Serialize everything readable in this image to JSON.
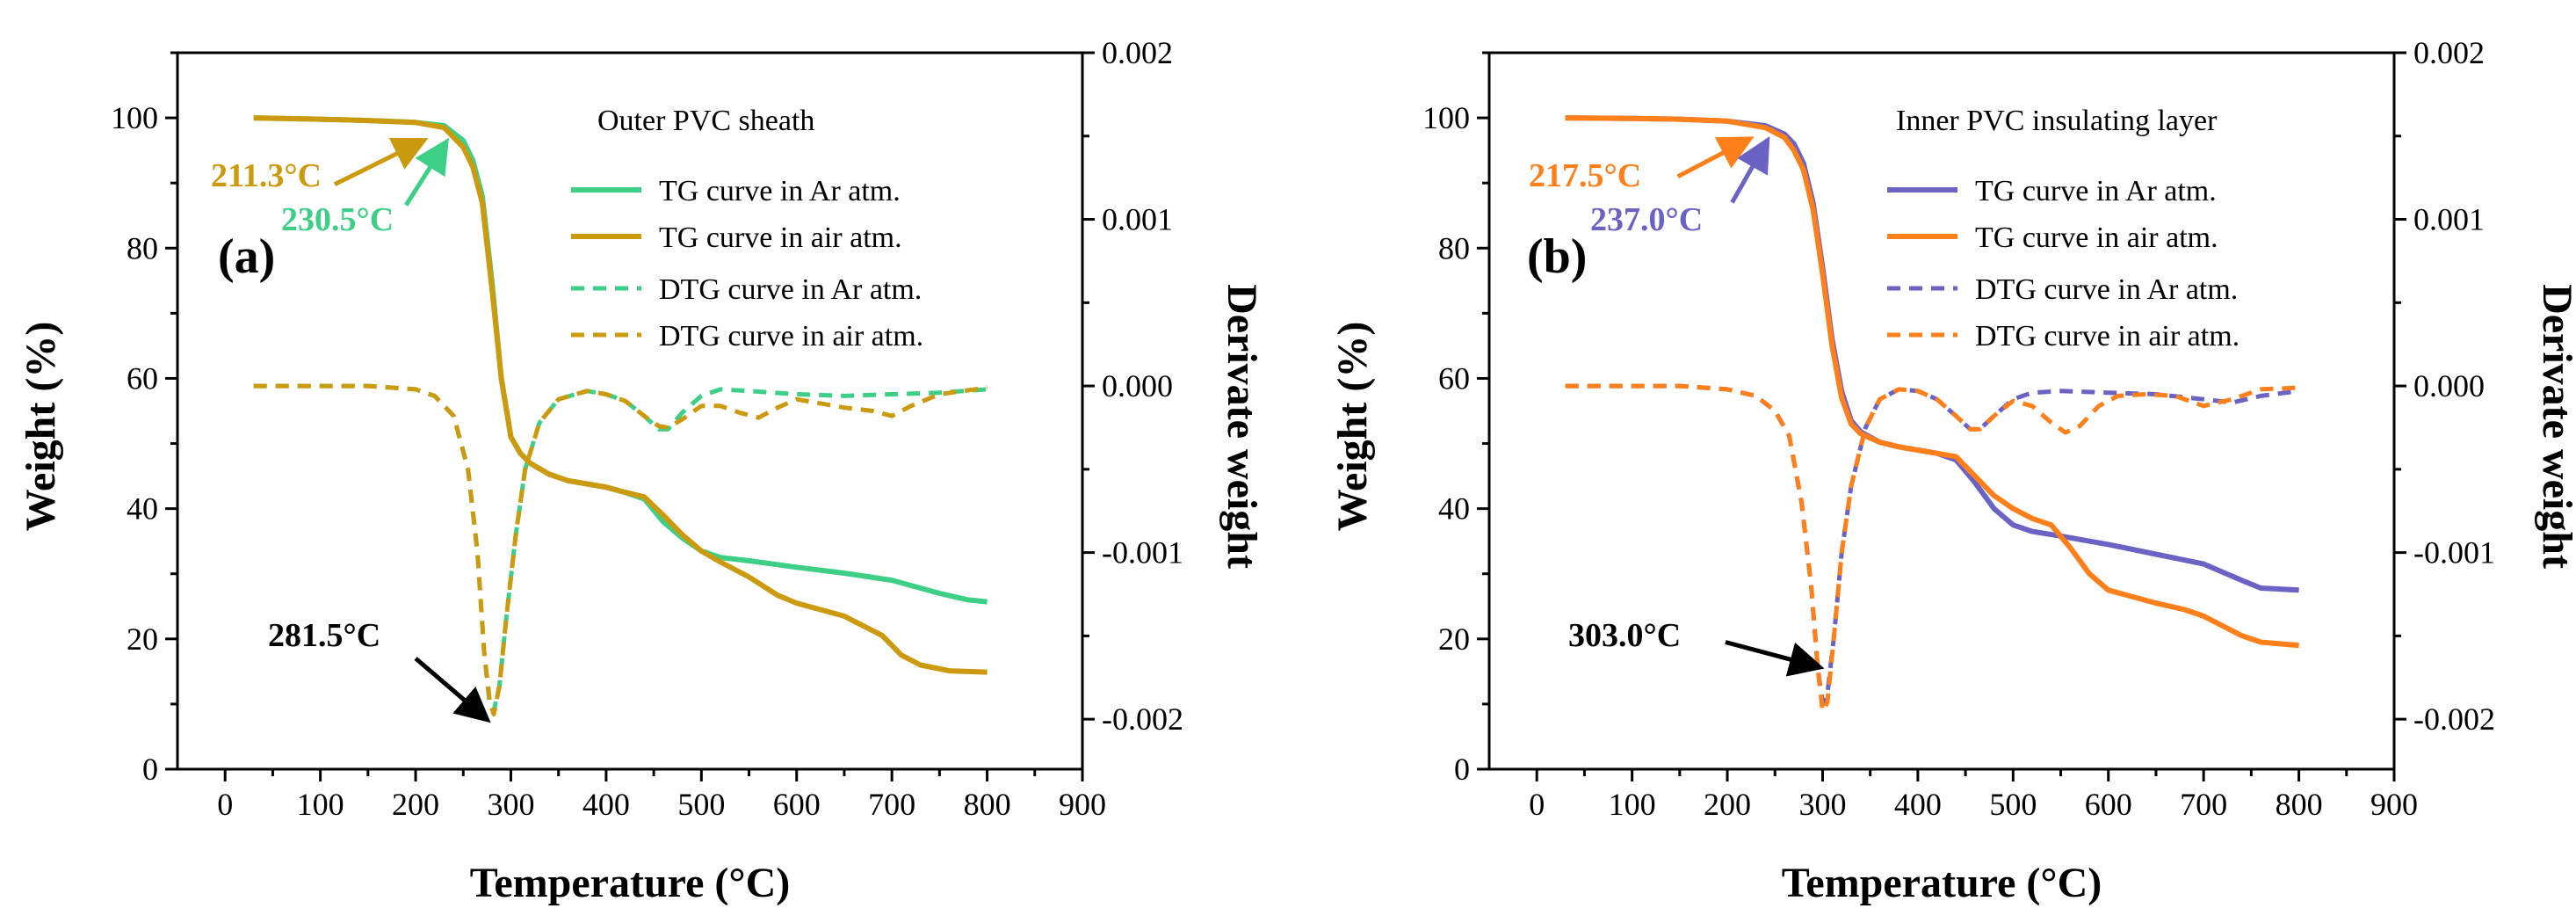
{
  "colors": {
    "ar_a": "#3ecf86",
    "air_a": "#cc9a0f",
    "ar_b": "#6b63c4",
    "air_b": "#ff7f1a",
    "axis": "#000000",
    "black_arrow": "#000000"
  },
  "chart_data": [
    {
      "type": "line",
      "panel_label": "(a)",
      "title": "Outer PVC sheath",
      "xlabel": "Temperature (°C)",
      "ylabel": "Weight (%)",
      "y2label": "Derivate weight",
      "xlim": [
        -50,
        900
      ],
      "ylim": [
        0,
        110
      ],
      "y2lim": [
        -0.0023,
        0.002
      ],
      "x_ticks": [
        0,
        100,
        200,
        300,
        400,
        500,
        600,
        700,
        800,
        900
      ],
      "y_ticks": [
        0,
        20,
        40,
        60,
        80,
        100
      ],
      "y2_ticks": [
        -0.002,
        -0.001,
        0.0,
        0.001,
        0.002
      ],
      "x_tick_labels": [
        "0",
        "100",
        "200",
        "300",
        "400",
        "500",
        "600",
        "700",
        "800",
        "900"
      ],
      "y_tick_labels": [
        "0",
        "20",
        "40",
        "60",
        "80",
        "100"
      ],
      "y2_tick_labels": [
        "-0.002",
        "-0.001",
        "0.000",
        "0.001",
        "0.002"
      ],
      "series": [
        {
          "name": "TG curve in Ar atm.",
          "axis": "left",
          "dash": false,
          "color": "#3ecf86",
          "x": [
            30,
            100,
            150,
            200,
            230,
            250,
            260,
            270,
            280,
            290,
            300,
            310,
            320,
            340,
            360,
            380,
            400,
            420,
            440,
            460,
            480,
            500,
            520,
            550,
            600,
            650,
            700,
            750,
            780,
            800
          ],
          "y": [
            100,
            99.8,
            99.6,
            99.3,
            98.8,
            96.5,
            93.5,
            88,
            75,
            60,
            51,
            48.5,
            47,
            45.3,
            44.3,
            43.8,
            43.3,
            42.5,
            41.5,
            38,
            35.5,
            33.5,
            32.5,
            32,
            31,
            30.1,
            29,
            27,
            26,
            25.7
          ]
        },
        {
          "name": "TG curve in air atm.",
          "axis": "left",
          "dash": false,
          "color": "#cc9a0f",
          "x": [
            30,
            100,
            150,
            200,
            230,
            250,
            260,
            270,
            280,
            290,
            300,
            310,
            320,
            340,
            360,
            380,
            400,
            420,
            440,
            460,
            480,
            500,
            520,
            550,
            580,
            600,
            650,
            690,
            710,
            730,
            760,
            800
          ],
          "y": [
            100,
            99.8,
            99.6,
            99.3,
            98.5,
            95.5,
            92.5,
            87,
            74,
            60,
            51,
            48.5,
            47,
            45.3,
            44.3,
            43.8,
            43.3,
            42.5,
            41.8,
            39,
            36,
            33.5,
            31.8,
            29.5,
            26.7,
            25.5,
            23.5,
            20.5,
            17.5,
            16,
            15.1,
            14.9
          ]
        },
        {
          "name": "DTG curve in Ar atm.",
          "axis": "right",
          "dash": true,
          "color": "#3ecf86",
          "x": [
            30,
            150,
            200,
            220,
            240,
            255,
            265,
            272,
            278,
            282,
            288,
            295,
            305,
            315,
            330,
            350,
            380,
            400,
            420,
            440,
            455,
            465,
            480,
            500,
            520,
            550,
            600,
            650,
            700,
            750,
            800
          ],
          "y": [
            0.0,
            0.0,
            -2e-05,
            -6e-05,
            -0.00018,
            -0.0005,
            -0.001,
            -0.0016,
            -0.00192,
            -0.00195,
            -0.0018,
            -0.0014,
            -0.0009,
            -0.0005,
            -0.00022,
            -8e-05,
            -3e-05,
            -5e-05,
            -9e-05,
            -0.00018,
            -0.00026,
            -0.00026,
            -0.00016,
            -6e-05,
            -2e-05,
            -3e-05,
            -5e-05,
            -6e-05,
            -5e-05,
            -4e-05,
            -2e-05
          ]
        },
        {
          "name": "DTG curve in air atm.",
          "axis": "right",
          "dash": true,
          "color": "#cc9a0f",
          "x": [
            30,
            150,
            200,
            220,
            240,
            255,
            265,
            272,
            278,
            282,
            288,
            295,
            305,
            315,
            330,
            350,
            380,
            400,
            420,
            440,
            455,
            465,
            480,
            500,
            520,
            540,
            560,
            580,
            600,
            620,
            650,
            680,
            700,
            720,
            750,
            800
          ],
          "y": [
            0.0,
            0.0,
            -2e-05,
            -6e-05,
            -0.00018,
            -0.0005,
            -0.001,
            -0.0016,
            -0.0019,
            -0.00197,
            -0.0018,
            -0.0014,
            -0.0009,
            -0.0005,
            -0.00022,
            -8e-05,
            -3e-05,
            -5e-05,
            -9e-05,
            -0.00018,
            -0.00024,
            -0.00025,
            -0.0002,
            -0.00012,
            -0.00012,
            -0.00016,
            -0.00019,
            -0.00013,
            -8e-05,
            -0.0001,
            -0.00013,
            -0.00015,
            -0.00018,
            -0.00012,
            -5e-05,
            -1e-05
          ]
        }
      ],
      "annotations": [
        {
          "text": "211.3°C",
          "color": "#cc9a0f",
          "x_from": 115,
          "y_from": 89.8,
          "x_to": 205,
          "y_to": 96.3
        },
        {
          "text": "230.5°C",
          "color": "#3ecf86",
          "x_from": 190,
          "y_from": 86.6,
          "x_to": 230,
          "y_to": 95.8
        },
        {
          "text": "281.5°C",
          "color": "#000000",
          "x_from": 200,
          "y_from": 17,
          "x_to": 272,
          "y_to": 8
        }
      ]
    },
    {
      "type": "line",
      "panel_label": "(b)",
      "title": "Inner PVC insulating layer",
      "xlabel": "Temperature (°C)",
      "ylabel": "Weight (%)",
      "y2label": "Derivate weight",
      "xlim": [
        -50,
        900
      ],
      "ylim": [
        0,
        110
      ],
      "y2lim": [
        -0.0023,
        0.002
      ],
      "x_ticks": [
        0,
        100,
        200,
        300,
        400,
        500,
        600,
        700,
        800,
        900
      ],
      "y_ticks": [
        0,
        20,
        40,
        60,
        80,
        100
      ],
      "y2_ticks": [
        -0.002,
        -0.001,
        0.0,
        0.001,
        0.002
      ],
      "x_tick_labels": [
        "0",
        "100",
        "200",
        "300",
        "400",
        "500",
        "600",
        "700",
        "800",
        "900"
      ],
      "y_tick_labels": [
        "0",
        "20",
        "40",
        "60",
        "80",
        "100"
      ],
      "y2_tick_labels": [
        "-0.002",
        "-0.001",
        "0.000",
        "0.001",
        "0.002"
      ],
      "series": [
        {
          "name": "TG curve in Ar atm.",
          "axis": "left",
          "dash": false,
          "color": "#6b63c4",
          "x": [
            30,
            100,
            150,
            200,
            240,
            260,
            270,
            280,
            290,
            300,
            310,
            320,
            330,
            340,
            360,
            380,
            400,
            420,
            440,
            460,
            480,
            500,
            520,
            550,
            600,
            650,
            700,
            740,
            760,
            800
          ],
          "y": [
            100,
            99.9,
            99.8,
            99.5,
            98.8,
            97.5,
            96,
            93,
            87,
            77,
            66,
            58,
            53.5,
            51.8,
            50.2,
            49.5,
            49,
            48.5,
            47.5,
            44,
            40,
            37.5,
            36.5,
            35.8,
            34.5,
            33,
            31.5,
            29,
            27.8,
            27.5
          ]
        },
        {
          "name": "TG curve in air atm.",
          "axis": "left",
          "dash": false,
          "color": "#ff7f1a",
          "x": [
            30,
            100,
            150,
            200,
            240,
            260,
            270,
            280,
            290,
            300,
            310,
            320,
            330,
            340,
            360,
            380,
            400,
            420,
            440,
            460,
            480,
            500,
            520,
            540,
            560,
            580,
            600,
            650,
            680,
            700,
            720,
            740,
            760,
            800
          ],
          "y": [
            100,
            99.9,
            99.8,
            99.5,
            98.5,
            97,
            95,
            92,
            86,
            76,
            65,
            57,
            53,
            51.5,
            50.2,
            49.5,
            49,
            48.5,
            48,
            45,
            42,
            40,
            38.5,
            37.5,
            34,
            30,
            27.5,
            25.5,
            24.5,
            23.5,
            22,
            20.5,
            19.5,
            19
          ]
        },
        {
          "name": "DTG curve in Ar atm.",
          "axis": "right",
          "dash": true,
          "color": "#6b63c4",
          "x": [
            30,
            150,
            200,
            230,
            250,
            265,
            278,
            288,
            295,
            300,
            305,
            312,
            320,
            330,
            345,
            360,
            380,
            400,
            420,
            440,
            455,
            465,
            480,
            500,
            520,
            550,
            600,
            650,
            700,
            730,
            760,
            800
          ],
          "y": [
            0.0,
            0.0,
            -2e-05,
            -6e-05,
            -0.00015,
            -0.0003,
            -0.0007,
            -0.0012,
            -0.0017,
            -0.0019,
            -0.00185,
            -0.0015,
            -0.001,
            -0.0006,
            -0.00025,
            -8e-05,
            -2e-05,
            -3e-05,
            -8e-05,
            -0.00018,
            -0.00026,
            -0.00026,
            -0.00018,
            -8e-05,
            -4e-05,
            -3e-05,
            -4e-05,
            -5e-05,
            -8e-05,
            -0.0001,
            -6e-05,
            -3e-05
          ]
        },
        {
          "name": "DTG curve in air atm.",
          "axis": "right",
          "dash": true,
          "color": "#ff7f1a",
          "x": [
            30,
            150,
            200,
            230,
            250,
            265,
            278,
            288,
            295,
            300,
            305,
            312,
            320,
            330,
            345,
            360,
            380,
            400,
            420,
            440,
            455,
            465,
            480,
            500,
            520,
            540,
            555,
            570,
            590,
            610,
            640,
            670,
            700,
            730,
            760,
            800
          ],
          "y": [
            0.0,
            0.0,
            -2e-05,
            -6e-05,
            -0.00015,
            -0.0003,
            -0.0007,
            -0.0012,
            -0.0017,
            -0.00195,
            -0.0019,
            -0.0015,
            -0.001,
            -0.0006,
            -0.00025,
            -8e-05,
            -2e-05,
            -3e-05,
            -8e-05,
            -0.00018,
            -0.00026,
            -0.00026,
            -0.00018,
            -9e-05,
            -0.00012,
            -0.00022,
            -0.00028,
            -0.00024,
            -0.00012,
            -6e-05,
            -5e-05,
            -6e-05,
            -0.00012,
            -8e-05,
            -2e-05,
            -1e-05
          ]
        }
      ],
      "annotations": [
        {
          "text": "217.5°C",
          "color": "#ff7f1a",
          "x_from": 148,
          "y_from": 91,
          "x_to": 220,
          "y_to": 96.5
        },
        {
          "text": "237.0°C",
          "color": "#6b63c4",
          "x_from": 205,
          "y_from": 87,
          "x_to": 240,
          "y_to": 96
        },
        {
          "text": "303.0°C",
          "color": "#000000",
          "x_from": 198,
          "y_from": 19.5,
          "x_to": 293,
          "y_to": 15.8
        }
      ]
    }
  ]
}
